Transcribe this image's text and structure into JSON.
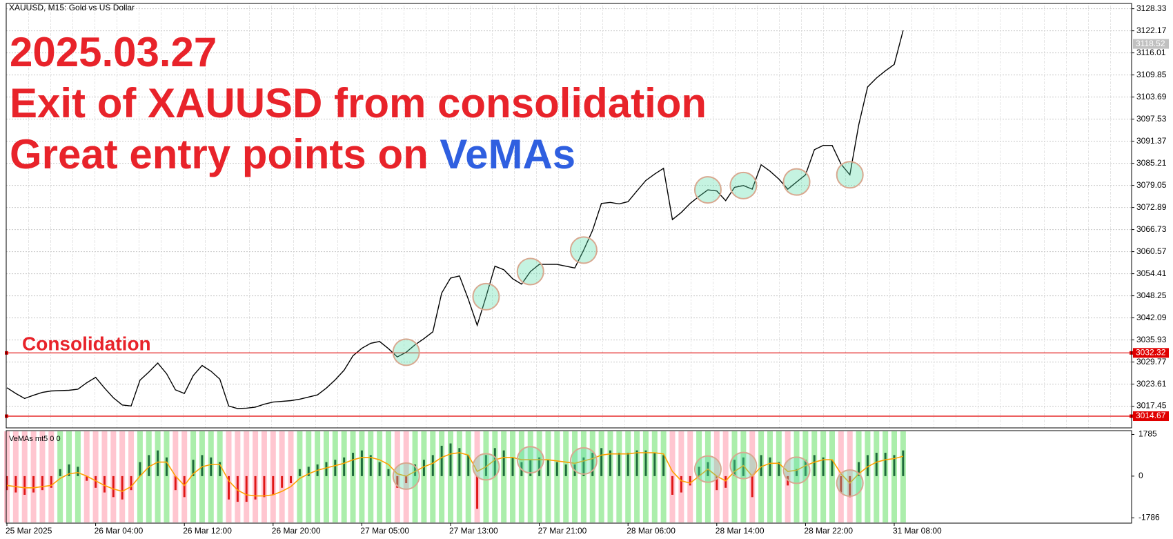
{
  "chart_data": [
    {
      "type": "line",
      "header": "XAUUSD, M15:  Gold vs US Dollar",
      "annotations": [
        "2025.03.27",
        "Exit of XAUUSD from consolidation",
        "Great entry points on",
        "VeMAs",
        "Consolidation"
      ],
      "categories": [
        "25 Mar 2025",
        null,
        null,
        null,
        null,
        null,
        null,
        null,
        null,
        null,
        "26 Mar 04:00",
        null,
        null,
        null,
        null,
        null,
        null,
        null,
        null,
        null,
        "26 Mar 12:00",
        null,
        null,
        null,
        null,
        null,
        null,
        null,
        null,
        null,
        "26 Mar 20:00",
        null,
        null,
        null,
        null,
        null,
        null,
        null,
        null,
        null,
        "27 Mar 05:00",
        null,
        null,
        null,
        null,
        null,
        null,
        null,
        null,
        null,
        "27 Mar 13:00",
        null,
        null,
        null,
        null,
        null,
        null,
        null,
        null,
        null,
        "27 Mar 21:00",
        null,
        null,
        null,
        null,
        null,
        null,
        null,
        null,
        null,
        "28 Mar 06:00",
        null,
        null,
        null,
        null,
        null,
        null,
        null,
        null,
        null,
        "28 Mar 14:00",
        null,
        null,
        null,
        null,
        null,
        null,
        null,
        null,
        null,
        "28 Mar 22:00",
        null,
        null,
        null,
        null,
        null,
        null,
        null,
        null,
        null,
        "31 Mar 08:00",
        null
      ],
      "series": [
        {
          "color": "#000000",
          "values": [
            3022.6,
            3021,
            3019.6,
            3020.5,
            3021.3,
            3021.7,
            3021.8,
            3021.9,
            3022.2,
            3024,
            3025.5,
            3022.5,
            3019.8,
            3017.8,
            3017.5,
            3024.7,
            3027,
            3029.5,
            3026.5,
            3022,
            3021,
            3026,
            3028.8,
            3027.2,
            3025,
            3017.5,
            3016.8,
            3016.9,
            3017.2,
            3018,
            3018.6,
            3018.8,
            3019,
            3019.4,
            3020,
            3020.6,
            3022.5,
            3024.8,
            3027.5,
            3031.5,
            3033.6,
            3035,
            3035.5,
            3033.5,
            3031.2,
            3032.5,
            3034.6,
            3036.3,
            3038.2,
            3049,
            3053.2,
            3053.8,
            3047.3,
            3040,
            3048,
            3056.5,
            3055.5,
            3053,
            3051.5,
            3055,
            3057,
            3057,
            3057,
            3056.5,
            3056,
            3061,
            3066.5,
            3074,
            3074.3,
            3073.9,
            3074.5,
            3077.5,
            3080.4,
            3082.2,
            3083.8,
            3069.5,
            3071.5,
            3074,
            3076,
            3077.8,
            3077.5,
            3074.8,
            3078.5,
            3079,
            3078,
            3084.8,
            3083,
            3080.8,
            3078,
            3080,
            3082,
            3089,
            3090.2,
            3090.2,
            3085,
            3082,
            3096,
            3106.5,
            3109,
            3111,
            3112.8,
            3122.3
          ]
        }
      ],
      "ylim": [
        3011.4,
        3129.8
      ],
      "yticks": [
        3128.33,
        3122.17,
        3116.01,
        3109.85,
        3103.69,
        3097.53,
        3091.37,
        3085.21,
        3079.05,
        3072.89,
        3066.73,
        3060.57,
        3054.41,
        3048.25,
        3042.09,
        3035.93,
        3029.77,
        3023.61,
        3017.45
      ],
      "levels": [
        3032.32,
        3014.67
      ],
      "level_color": "#e00000",
      "last_price": 3118.52,
      "entry_points": [
        45,
        54,
        59,
        65,
        79,
        83,
        89,
        95
      ],
      "grid": true
    },
    {
      "type": "bar",
      "title": "VeMAs mt5 0 0",
      "series": [
        {
          "values": [
            -600,
            -700,
            -800,
            -700,
            -600,
            -500,
            300,
            500,
            400,
            -200,
            -500,
            -700,
            -900,
            -1000,
            -600,
            600,
            900,
            1100,
            800,
            -600,
            -900,
            700,
            900,
            800,
            600,
            -1000,
            -1100,
            -1100,
            -1000,
            -900,
            -800,
            -500,
            -300,
            300,
            400,
            500,
            600,
            700,
            800,
            1000,
            1100,
            900,
            600,
            300,
            -500,
            -300,
            500,
            700,
            900,
            1300,
            1400,
            1200,
            900,
            -1400,
            900,
            1200,
            1100,
            800,
            600,
            700,
            800,
            700,
            600,
            500,
            500,
            800,
            1000,
            1200,
            1100,
            1000,
            1000,
            1100,
            1100,
            1000,
            900,
            -800,
            -700,
            -400,
            400,
            600,
            -600,
            -500,
            700,
            800,
            -900,
            900,
            800,
            600,
            -400,
            300,
            700,
            900,
            800,
            700,
            -700,
            -900,
            600,
            900,
            1000,
            1000,
            900,
            1100
          ],
          "color_up": "#1e6b3c",
          "color_down": "#e01818",
          "zone_up": "#8fe88f",
          "zone_down": "#ffb3c0"
        }
      ],
      "signal": {
        "color": "#ffa000",
        "values": [
          -400,
          -450,
          -500,
          -500,
          -450,
          -400,
          -100,
          100,
          150,
          0,
          -200,
          -400,
          -550,
          -650,
          -450,
          0,
          400,
          600,
          600,
          0,
          -400,
          100,
          400,
          500,
          500,
          -200,
          -600,
          -800,
          -850,
          -850,
          -800,
          -650,
          -450,
          -100,
          100,
          250,
          350,
          450,
          550,
          700,
          800,
          800,
          700,
          500,
          100,
          0,
          200,
          400,
          550,
          800,
          950,
          1000,
          900,
          200,
          400,
          700,
          800,
          800,
          700,
          700,
          700,
          700,
          650,
          600,
          550,
          650,
          750,
          900,
          950,
          950,
          950,
          1000,
          1000,
          1000,
          950,
          200,
          -200,
          -300,
          0,
          300,
          0,
          -200,
          200,
          450,
          0,
          400,
          550,
          550,
          200,
          250,
          450,
          600,
          700,
          700,
          100,
          -300,
          100,
          400,
          600,
          700,
          750,
          850
        ]
      },
      "ylim": [
        -2013,
        1947
      ],
      "yticks": [
        1785,
        0,
        -1786
      ]
    }
  ]
}
